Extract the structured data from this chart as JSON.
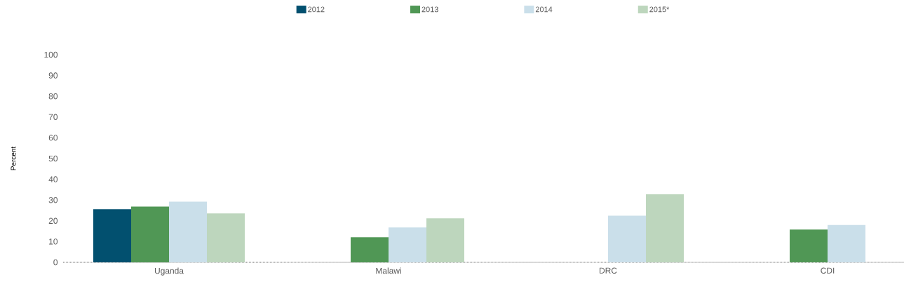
{
  "chart_data": {
    "type": "bar",
    "ylabel": "Percent",
    "legend": "top",
    "categories": [
      "Uganda",
      "Malawi",
      "DRC",
      "CDI"
    ],
    "series": [
      {
        "name": "2012",
        "color": "#02506f",
        "values": [
          25.6,
          null,
          null,
          null
        ]
      },
      {
        "name": "2013",
        "color": "#509755",
        "values": [
          26.9,
          12.1,
          null,
          15.8
        ]
      },
      {
        "name": "2014",
        "color": "#cadfea",
        "values": [
          29.2,
          16.8,
          22.5,
          18.0
        ]
      },
      {
        "name": "2015*",
        "color": "#bdd6bd",
        "values": [
          23.6,
          21.2,
          32.8,
          null
        ]
      }
    ],
    "ylim": [
      0,
      100
    ],
    "yticks": [
      0,
      10,
      20,
      30,
      40,
      50,
      60,
      70,
      80,
      90,
      100
    ]
  }
}
